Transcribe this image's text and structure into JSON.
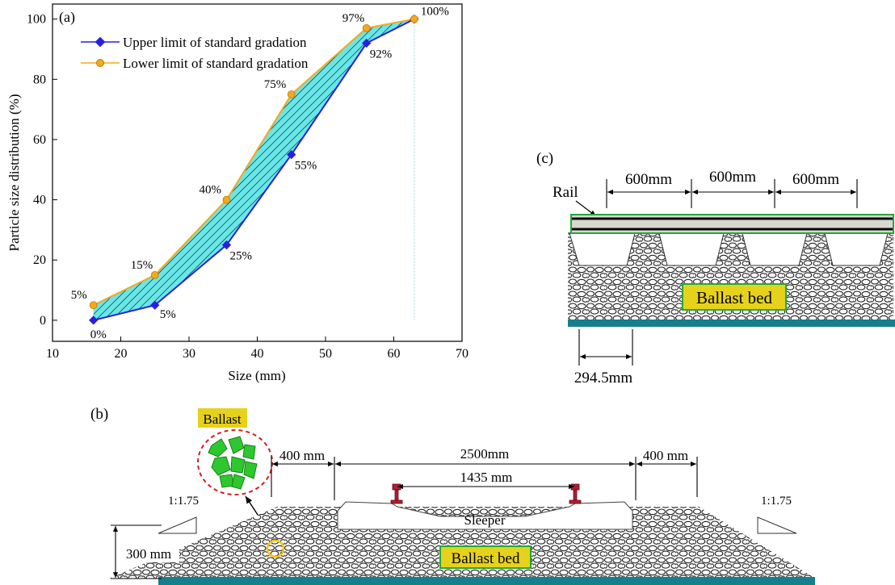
{
  "colors": {
    "upper": "#2a1fe0",
    "lower": "#f5a81c",
    "fill": "#66e8e8",
    "green": "#22a838",
    "teal": "#167f8c",
    "label_bg": "#e6d21a",
    "ballast_green": "#2ec82e",
    "red_dash": "#d21e1e",
    "rail_red": "#b01e32"
  },
  "panel_a": {
    "tag": "(a)",
    "chart_data": {
      "type": "line",
      "xlabel": "Size (mm)",
      "ylabel": "Particle size distribution (%)",
      "xlim": [
        10,
        70
      ],
      "ylim": [
        -7,
        105
      ],
      "xticks": [
        10,
        20,
        30,
        40,
        50,
        60,
        70
      ],
      "yticks": [
        0,
        20,
        40,
        60,
        80,
        100
      ],
      "legend_position": "top-left",
      "grid": false,
      "x": [
        16,
        25,
        35.5,
        45,
        56,
        63
      ],
      "series": [
        {
          "name": "Upper limit of standard gradation",
          "values": [
            0,
            5,
            25,
            55,
            92,
            100
          ],
          "labels": [
            "0%",
            "5%",
            "25%",
            "55%",
            "92%",
            "100%"
          ]
        },
        {
          "name": "Lower limit of standard gradation",
          "values": [
            5,
            15,
            40,
            75,
            97,
            100
          ],
          "labels": [
            "5%",
            "15%",
            "40%",
            "75%",
            "97%",
            ""
          ]
        }
      ]
    }
  },
  "panel_b": {
    "tag": "(b)",
    "ballast_label": "Ballast",
    "dim_left": "400 mm",
    "dim_center": "2500mm",
    "dim_right": "400 mm",
    "dim_gauge": "1435 mm",
    "slope_left": "1:1.75",
    "slope_right": "1:1.75",
    "sleeper_label": "Sleeper",
    "height_label": "300 mm",
    "bed_label": "Ballast bed"
  },
  "panel_c": {
    "tag": "(c)",
    "rail_label": "Rail",
    "spacings": [
      "600mm",
      "600mm",
      "600mm"
    ],
    "bottom_dim": "294.5mm",
    "bed_label": "Ballast bed"
  }
}
